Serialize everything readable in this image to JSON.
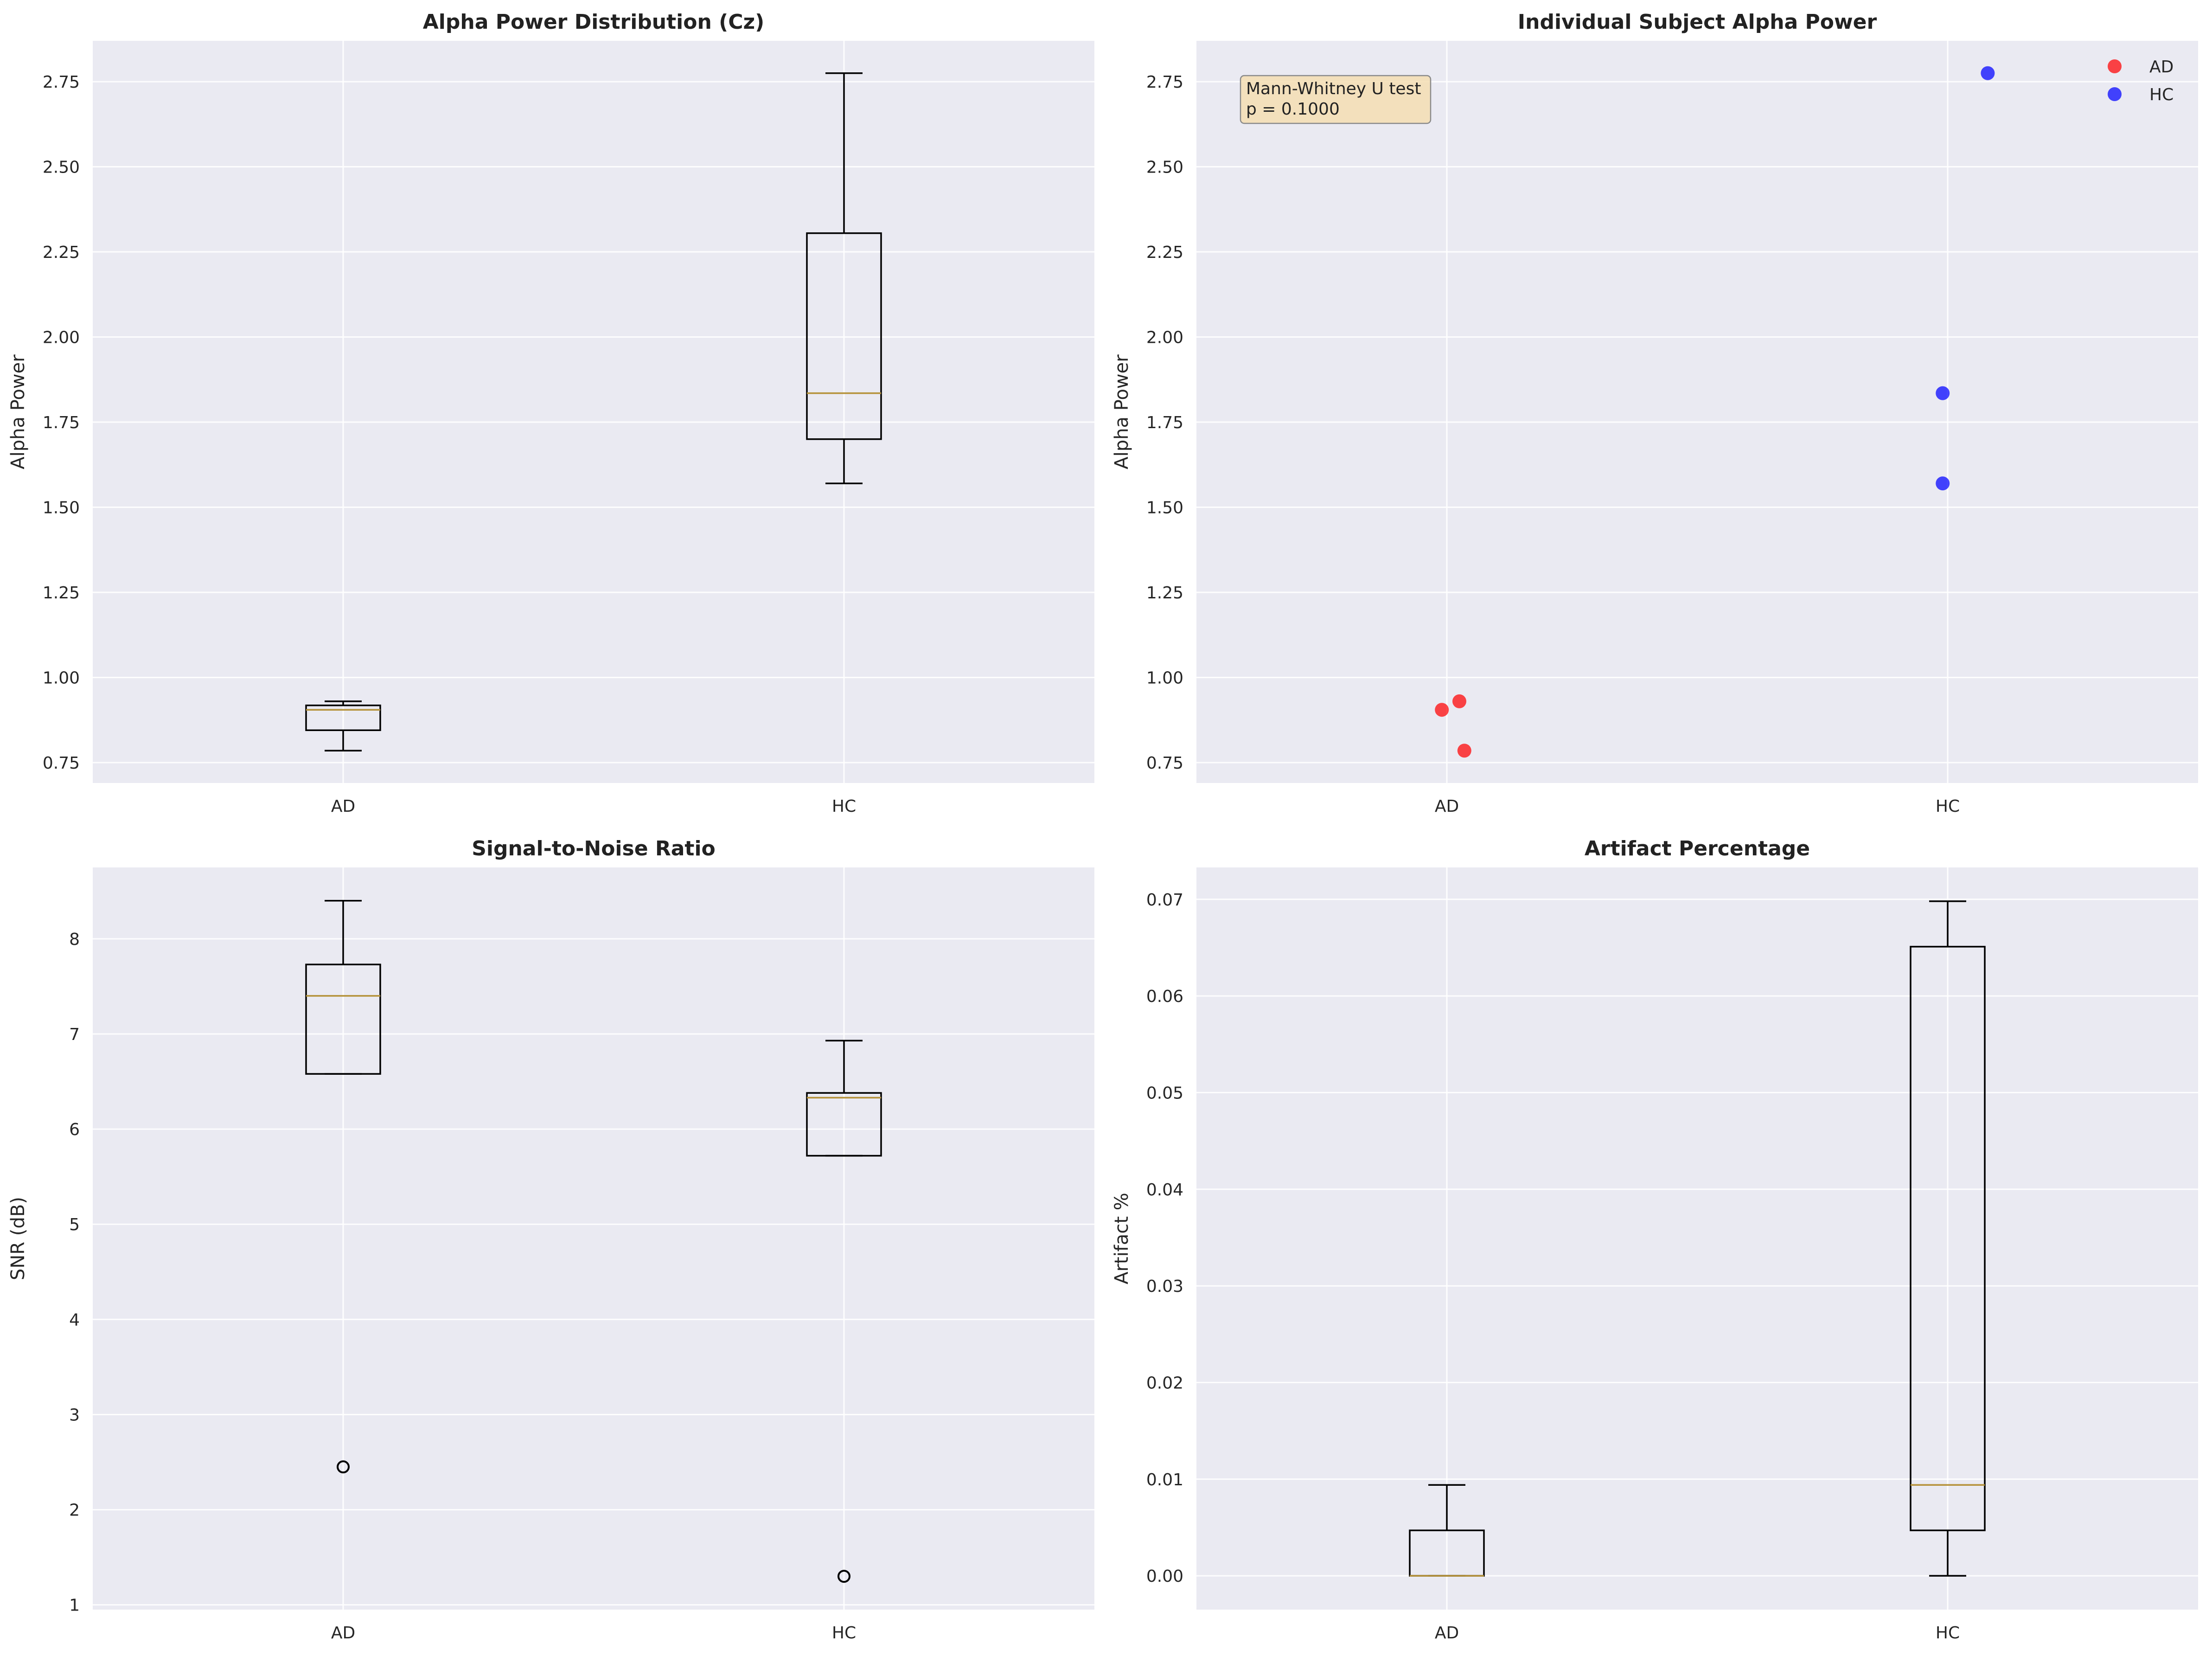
{
  "colors": {
    "panel_bg": "#eaeaf2",
    "grid": "#ffffff",
    "box": "#000000",
    "median": "#b5923a",
    "ad": "#ff0000",
    "hc": "#0000ff",
    "annotation_bg": "#f5deb3"
  },
  "chart_data": [
    {
      "type": "box",
      "title": "Alpha Power Distribution (Cz)",
      "xlabel": "",
      "ylabel": "Alpha Power",
      "categories": [
        "AD",
        "HC"
      ],
      "ylim": [
        0.69,
        2.87
      ],
      "yticks": [
        "0.75",
        "1.00",
        "1.25",
        "1.50",
        "1.75",
        "2.00",
        "2.25",
        "2.50",
        "2.75"
      ],
      "ytick_values": [
        0.75,
        1.0,
        1.25,
        1.5,
        1.75,
        2.0,
        2.25,
        2.5,
        2.75
      ],
      "boxes": [
        {
          "category": "AD",
          "whisker_low": 0.785,
          "q1": 0.845,
          "median": 0.905,
          "q3": 0.918,
          "whisker_high": 0.93,
          "outliers": []
        },
        {
          "category": "HC",
          "whisker_low": 1.57,
          "q1": 1.7,
          "median": 1.835,
          "q3": 2.305,
          "whisker_high": 2.775,
          "outliers": []
        }
      ],
      "grid": true
    },
    {
      "type": "scatter",
      "title": "Individual Subject Alpha Power",
      "xlabel": "",
      "ylabel": "Alpha Power",
      "categories": [
        "AD",
        "HC"
      ],
      "ylim": [
        0.69,
        2.87
      ],
      "yticks": [
        "0.75",
        "1.00",
        "1.25",
        "1.50",
        "1.75",
        "2.00",
        "2.25",
        "2.50",
        "2.75"
      ],
      "ytick_values": [
        0.75,
        1.0,
        1.25,
        1.5,
        1.75,
        2.0,
        2.25,
        2.5,
        2.75
      ],
      "series": [
        {
          "name": "AD",
          "color": "#ff0000",
          "points": [
            {
              "x": -0.01,
              "y": 0.905
            },
            {
              "x": 0.025,
              "y": 0.93
            },
            {
              "x": 0.035,
              "y": 0.785
            }
          ]
        },
        {
          "name": "HC",
          "color": "#0000ff",
          "points": [
            {
              "x": 0.99,
              "y": 1.835
            },
            {
              "x": 0.99,
              "y": 1.57
            },
            {
              "x": 1.08,
              "y": 2.775
            }
          ]
        }
      ],
      "annotation": {
        "line1": "Mann-Whitney U test",
        "line2": "p = 0.1000"
      },
      "legend": "top-right",
      "grid": true
    },
    {
      "type": "box",
      "title": "Signal-to-Noise Ratio",
      "xlabel": "",
      "ylabel": "SNR (dB)",
      "categories": [
        "AD",
        "HC"
      ],
      "ylim": [
        0.95,
        8.75
      ],
      "yticks": [
        "1",
        "2",
        "3",
        "4",
        "5",
        "6",
        "7",
        "8"
      ],
      "ytick_values": [
        1,
        2,
        3,
        4,
        5,
        6,
        7,
        8
      ],
      "boxes": [
        {
          "category": "AD",
          "whisker_low": 6.58,
          "q1": 6.58,
          "median": 7.4,
          "q3": 7.73,
          "whisker_high": 8.4,
          "outliers": [
            2.45
          ]
        },
        {
          "category": "HC",
          "whisker_low": 5.72,
          "q1": 5.72,
          "median": 6.33,
          "q3": 6.38,
          "whisker_high": 6.93,
          "outliers": [
            1.3
          ]
        }
      ],
      "grid": true
    },
    {
      "type": "box",
      "title": "Artifact Percentage",
      "xlabel": "",
      "ylabel": "Artifact %",
      "categories": [
        "AD",
        "HC"
      ],
      "ylim": [
        -0.0035,
        0.0733
      ],
      "yticks": [
        "0.00",
        "0.01",
        "0.02",
        "0.03",
        "0.04",
        "0.05",
        "0.06",
        "0.07"
      ],
      "ytick_values": [
        0.0,
        0.01,
        0.02,
        0.03,
        0.04,
        0.05,
        0.06,
        0.07
      ],
      "boxes": [
        {
          "category": "AD",
          "whisker_low": 0.0,
          "q1": 0.0,
          "median": 0.0,
          "q3": 0.0047,
          "whisker_high": 0.0094,
          "outliers": []
        },
        {
          "category": "HC",
          "whisker_low": 0.0,
          "q1": 0.0047,
          "median": 0.0094,
          "q3": 0.0651,
          "whisker_high": 0.0698,
          "outliers": []
        }
      ],
      "grid": true
    }
  ]
}
